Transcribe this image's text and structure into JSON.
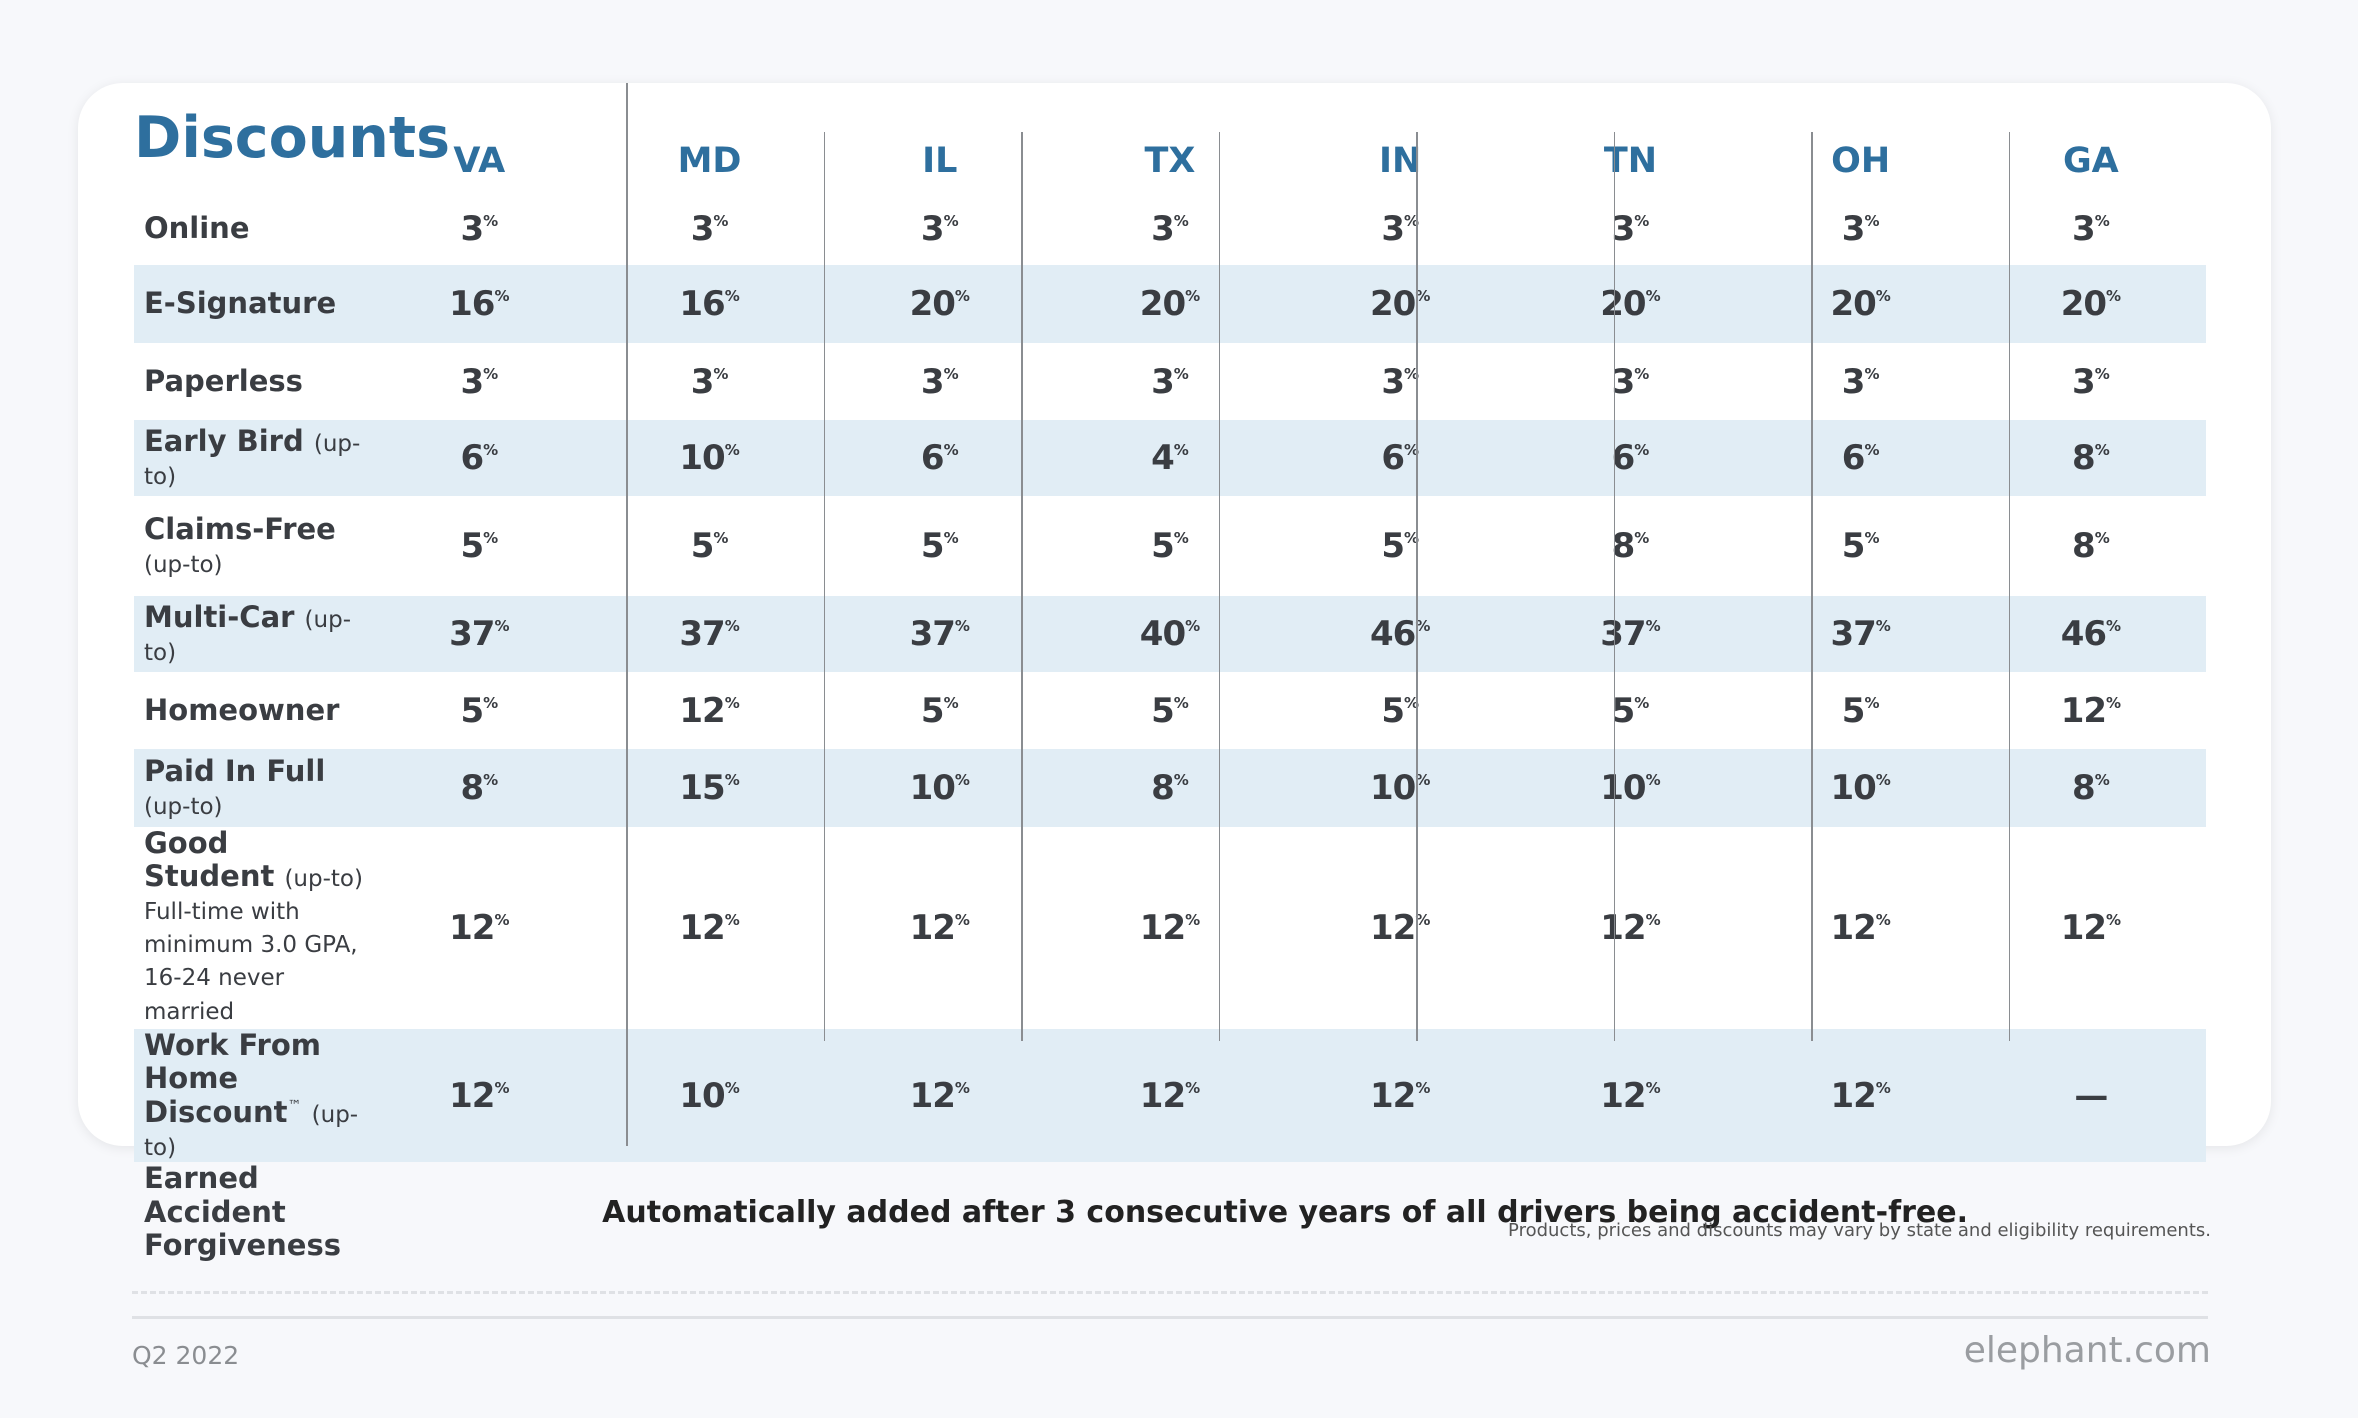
{
  "title": "Discounts",
  "columns": [
    "VA",
    "MD",
    "IL",
    "TX",
    "IN",
    "TN",
    "OH",
    "GA"
  ],
  "unit": "%",
  "rows": [
    {
      "label": "Online",
      "values": [
        3,
        3,
        3,
        3,
        3,
        3,
        3,
        3
      ]
    },
    {
      "label": "E-Signature",
      "values": [
        16,
        16,
        20,
        20,
        20,
        20,
        20,
        20
      ]
    },
    {
      "label": "Paperless",
      "values": [
        3,
        3,
        3,
        3,
        3,
        3,
        3,
        3
      ]
    },
    {
      "label": "Early Bird",
      "qualifier": "(up-to)",
      "values": [
        6,
        10,
        6,
        4,
        6,
        6,
        6,
        8
      ]
    },
    {
      "label": "Claims-Free",
      "qualifier": "(up-to)",
      "values": [
        5,
        5,
        5,
        5,
        5,
        8,
        5,
        8
      ]
    },
    {
      "label": "Multi-Car",
      "qualifier": "(up-to)",
      "values": [
        37,
        37,
        37,
        40,
        46,
        37,
        37,
        46
      ]
    },
    {
      "label": "Homeowner",
      "values": [
        5,
        12,
        5,
        5,
        5,
        5,
        5,
        12
      ]
    },
    {
      "label": "Paid In Full",
      "qualifier": "(up-to)",
      "values": [
        8,
        15,
        10,
        8,
        10,
        10,
        10,
        8
      ]
    },
    {
      "label": "Good Student",
      "qualifier": "(up-to)",
      "note": [
        "Full-time with minimum 3.0 GPA,",
        "16-24 never married"
      ],
      "values": [
        12,
        12,
        12,
        12,
        12,
        12,
        12,
        12
      ]
    },
    {
      "label": "Work From Home Discount",
      "trademark": "™",
      "qualifier": "(up-to)",
      "values": [
        12,
        10,
        12,
        12,
        12,
        12,
        12,
        "—"
      ]
    }
  ],
  "footer_row": {
    "label": "Earned Accident Forgiveness",
    "text": "Automatically added after 3 consecutive years of all drivers being accident-free."
  },
  "disclaimer": "Products, prices and discounts may vary by state and eligibility requirements.",
  "period": "Q2 2022",
  "website": "elephant.com"
}
